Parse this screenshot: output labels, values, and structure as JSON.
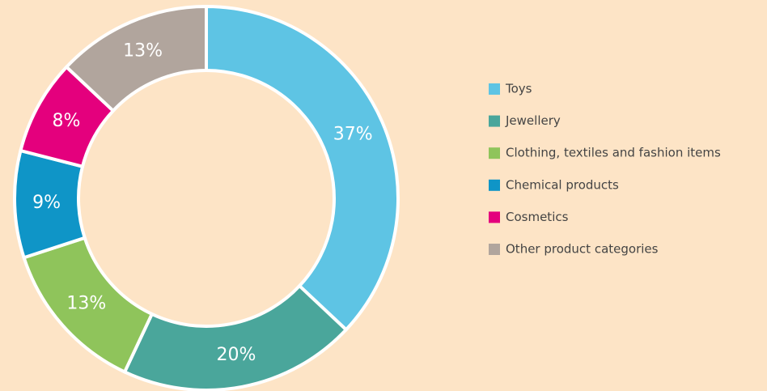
{
  "chart_data": {
    "type": "pie",
    "categories": [
      "Toys",
      "Jewellery",
      "Clothing, textiles and fashion items",
      "Chemical products",
      "Cosmetics",
      "Other product categories"
    ],
    "values": [
      37,
      20,
      13,
      9,
      8,
      13
    ],
    "value_labels": [
      "37%",
      "20%",
      "13%",
      "9%",
      "8%",
      "13%"
    ],
    "colors": [
      "#5ec4e4",
      "#4aa69b",
      "#8fc45b",
      "#0f95c7",
      "#e4007d",
      "#b1a59d"
    ],
    "legend": "right"
  }
}
